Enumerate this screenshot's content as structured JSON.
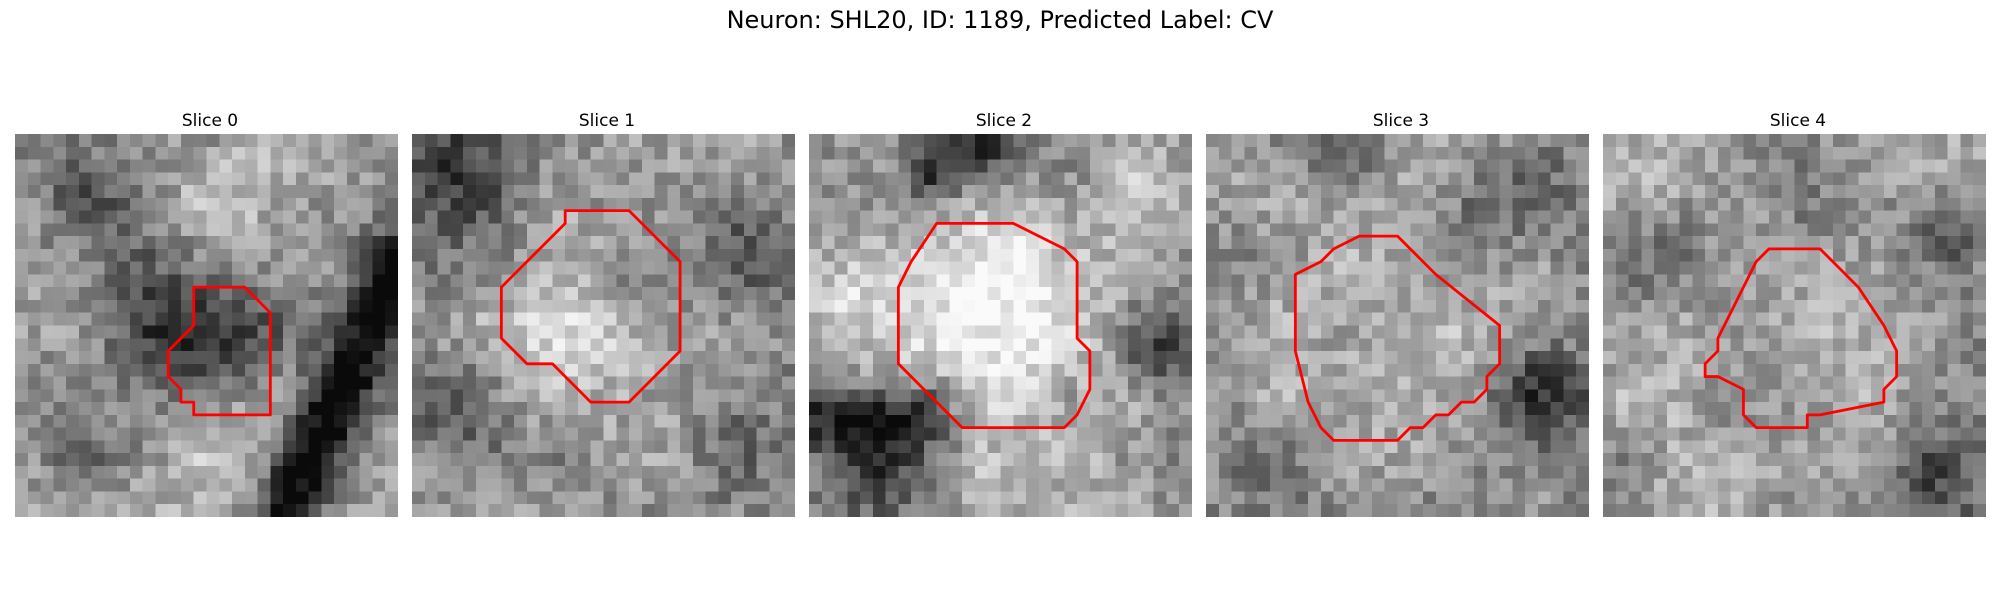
{
  "title": "Neuron: SHL20, ID: 1189, Predicted Label: CV",
  "contour_color": "#ff0000",
  "panels": [
    {
      "label": "Slice 0",
      "seed": 11,
      "contour": [
        [
          14,
          12
        ],
        [
          18,
          12
        ],
        [
          20,
          14
        ],
        [
          20,
          22
        ],
        [
          15,
          22
        ],
        [
          14,
          22
        ],
        [
          14,
          21
        ],
        [
          13,
          21
        ],
        [
          13,
          20
        ],
        [
          12,
          19
        ],
        [
          12,
          17
        ],
        [
          13,
          16
        ],
        [
          14,
          15
        ]
      ],
      "features": [
        {
          "x": 14.5,
          "y": 16.5,
          "r": 4.2,
          "d": -110
        },
        {
          "x": 5,
          "y": 5,
          "r": 2.5,
          "d": -50
        },
        {
          "x": 17,
          "y": 4,
          "r": 4,
          "d": 40
        },
        {
          "x": 15,
          "y": 25,
          "r": 5,
          "d": 40
        },
        {
          "x": 5,
          "y": 22,
          "r": 4,
          "d": -30
        },
        {
          "x": 9,
          "y": 10,
          "r": 2.5,
          "d": -30
        }
      ],
      "band": {
        "x1": 30,
        "y1": 10,
        "x2": 21,
        "y2": 30,
        "r": 1.8,
        "d": -150
      }
    },
    {
      "label": "Slice 1",
      "seed": 23,
      "contour": [
        [
          12,
          6
        ],
        [
          17,
          6
        ],
        [
          21,
          10
        ],
        [
          21,
          17
        ],
        [
          17,
          21
        ],
        [
          14,
          21
        ],
        [
          12,
          19
        ],
        [
          11,
          18
        ],
        [
          9,
          18
        ],
        [
          7,
          16
        ],
        [
          7,
          12
        ],
        [
          12,
          7
        ]
      ],
      "features": [
        {
          "x": 13,
          "y": 14,
          "r": 4.5,
          "d": 55
        },
        {
          "x": 16,
          "y": 12,
          "r": 1.8,
          "d": -60
        },
        {
          "x": 3,
          "y": 3,
          "r": 4,
          "d": -85
        },
        {
          "x": 3,
          "y": 22,
          "r": 3,
          "d": -50
        },
        {
          "x": 25,
          "y": 25,
          "r": 3,
          "d": -30
        },
        {
          "x": 27,
          "y": 10,
          "r": 3,
          "d": -40
        }
      ]
    },
    {
      "label": "Slice 2",
      "seed": 37,
      "contour": [
        [
          10,
          7
        ],
        [
          16,
          7
        ],
        [
          18,
          8
        ],
        [
          20,
          9
        ],
        [
          21,
          10
        ],
        [
          21,
          16
        ],
        [
          22,
          17
        ],
        [
          22,
          20
        ],
        [
          21,
          22
        ],
        [
          20,
          23
        ],
        [
          12,
          23
        ],
        [
          7,
          18
        ],
        [
          7,
          12
        ],
        [
          8,
          10
        ]
      ],
      "features": [
        {
          "x": 15,
          "y": 14.5,
          "r": 6.3,
          "d": 95
        },
        {
          "x": 10,
          "y": 3,
          "r": 2,
          "d": -110
        },
        {
          "x": 14,
          "y": 1,
          "r": 1.5,
          "d": -80
        },
        {
          "x": 5,
          "y": 25,
          "r": 3.5,
          "d": -100
        },
        {
          "x": 28,
          "y": 17,
          "r": 2.5,
          "d": -100
        },
        {
          "x": 3,
          "y": 14,
          "r": 3,
          "d": 55
        },
        {
          "x": 27,
          "y": 4,
          "r": 3,
          "d": 45
        },
        {
          "x": 14,
          "y": 27,
          "r": 2,
          "d": 50
        }
      ],
      "band": {
        "x1": 0,
        "y1": 22,
        "x2": 9,
        "y2": 22,
        "r": 1.8,
        "d": -90
      }
    },
    {
      "label": "Slice 3",
      "seed": 53,
      "contour": [
        [
          12,
          8
        ],
        [
          15,
          8
        ],
        [
          18,
          11
        ],
        [
          23,
          15
        ],
        [
          23,
          18
        ],
        [
          22,
          19
        ],
        [
          22,
          20
        ],
        [
          21,
          21
        ],
        [
          20,
          21
        ],
        [
          19,
          22
        ],
        [
          18,
          22
        ],
        [
          17,
          23
        ],
        [
          16,
          23
        ],
        [
          15,
          24
        ],
        [
          10,
          24
        ],
        [
          9,
          23
        ],
        [
          8,
          21
        ],
        [
          7,
          17
        ],
        [
          7,
          11
        ],
        [
          9,
          10
        ],
        [
          10,
          9
        ]
      ],
      "features": [
        {
          "x": 15,
          "y": 16,
          "r": 6,
          "d": 40
        },
        {
          "x": 26,
          "y": 20,
          "r": 2.5,
          "d": -110
        },
        {
          "x": 25,
          "y": 5,
          "r": 2.5,
          "d": -50
        },
        {
          "x": 3,
          "y": 3,
          "r": 3,
          "d": 30
        },
        {
          "x": 4,
          "y": 26,
          "r": 3,
          "d": -20
        },
        {
          "x": 11,
          "y": 2,
          "r": 2,
          "d": -40
        }
      ]
    },
    {
      "label": "Slice 4",
      "seed": 71,
      "contour": [
        [
          12,
          10
        ],
        [
          13,
          9
        ],
        [
          17,
          9
        ],
        [
          18,
          10
        ],
        [
          19,
          11
        ],
        [
          20,
          12
        ],
        [
          22,
          15
        ],
        [
          23,
          17
        ],
        [
          23,
          19
        ],
        [
          22,
          20
        ],
        [
          22,
          21
        ],
        [
          17,
          22
        ],
        [
          16,
          22
        ],
        [
          16,
          23
        ],
        [
          12,
          23
        ],
        [
          11,
          22
        ],
        [
          11,
          20
        ],
        [
          9,
          19
        ],
        [
          8,
          19
        ],
        [
          8,
          18
        ],
        [
          9,
          17
        ],
        [
          9,
          16
        ],
        [
          10,
          14
        ]
      ],
      "features": [
        {
          "x": 16,
          "y": 16,
          "r": 5,
          "d": 30
        },
        {
          "x": 27,
          "y": 8,
          "r": 2.5,
          "d": -70
        },
        {
          "x": 26,
          "y": 27,
          "r": 3,
          "d": -60
        },
        {
          "x": 5,
          "y": 10,
          "r": 3,
          "d": -40
        },
        {
          "x": 7,
          "y": 27,
          "r": 3,
          "d": 30
        },
        {
          "x": 3,
          "y": 3,
          "r": 2,
          "d": 40
        }
      ]
    }
  ]
}
